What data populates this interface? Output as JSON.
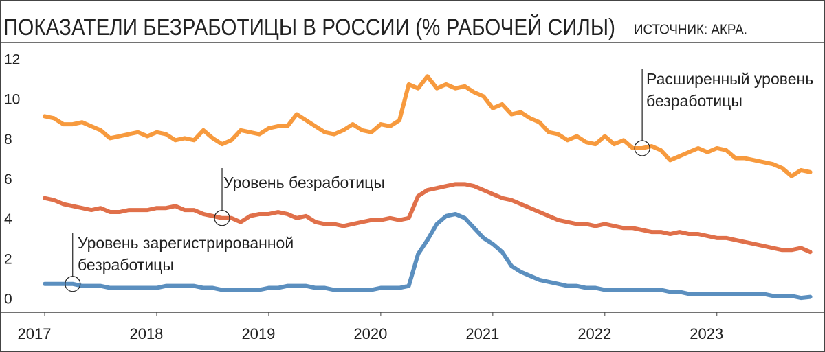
{
  "chart_data": {
    "type": "line",
    "title": "ПОКАЗАТЕЛИ БЕЗРАБОТИЦЫ В РОССИИ (% РАБОЧЕЙ СИЛЫ)",
    "source": "ИСТОЧНИК: АКРА.",
    "categories": [
      "2017",
      null,
      null,
      null,
      null,
      null,
      null,
      null,
      null,
      null,
      null,
      null,
      "2018",
      null,
      null,
      null,
      null,
      null,
      null,
      null,
      null,
      null,
      null,
      null,
      "2019",
      null,
      null,
      null,
      null,
      null,
      null,
      null,
      null,
      null,
      null,
      null,
      "2020",
      null,
      null,
      null,
      null,
      null,
      null,
      null,
      null,
      null,
      null,
      null,
      "2021",
      null,
      null,
      null,
      null,
      null,
      null,
      null,
      null,
      null,
      null,
      null,
      "2022",
      null,
      null,
      null,
      null,
      null,
      null,
      null,
      null,
      null,
      null,
      null,
      "2023",
      null,
      null,
      null,
      null,
      null,
      null,
      null,
      null,
      null,
      null
    ],
    "series": [
      {
        "color": "#f79a3e",
        "values": [
          9.2,
          9.1,
          8.8,
          8.8,
          8.9,
          8.7,
          8.5,
          8.1,
          8.2,
          8.3,
          8.4,
          8.2,
          8.4,
          8.3,
          8.0,
          8.1,
          8.0,
          8.5,
          8.1,
          7.8,
          8.0,
          8.5,
          8.4,
          8.3,
          8.6,
          8.7,
          8.7,
          9.3,
          9.0,
          8.7,
          8.4,
          8.3,
          8.5,
          8.8,
          8.5,
          8.4,
          8.8,
          8.7,
          9.0,
          10.8,
          10.6,
          11.2,
          10.6,
          10.8,
          10.6,
          10.7,
          10.4,
          10.2,
          9.6,
          9.8,
          9.3,
          9.4,
          9.1,
          8.9,
          8.4,
          8.3,
          8.0,
          8.2,
          7.9,
          7.8,
          8.2,
          7.8,
          8.0,
          7.6,
          7.6,
          7.7,
          7.5,
          7.0,
          7.2,
          7.4,
          7.6,
          7.4,
          7.6,
          7.5,
          7.1,
          7.1,
          7.0,
          6.9,
          6.8,
          6.6,
          6.2,
          6.5,
          6.4
        ]
      },
      {
        "color": "#e0704a",
        "values": [
          5.1,
          5.0,
          4.8,
          4.7,
          4.6,
          4.5,
          4.6,
          4.4,
          4.4,
          4.5,
          4.5,
          4.5,
          4.6,
          4.6,
          4.7,
          4.5,
          4.5,
          4.3,
          4.2,
          4.1,
          4.1,
          3.9,
          4.2,
          4.3,
          4.3,
          4.4,
          4.3,
          4.1,
          4.2,
          3.9,
          3.8,
          3.8,
          3.7,
          3.8,
          3.9,
          4.0,
          4.0,
          4.1,
          4.0,
          4.1,
          5.2,
          5.5,
          5.6,
          5.7,
          5.8,
          5.8,
          5.7,
          5.5,
          5.3,
          5.1,
          5.0,
          4.8,
          4.6,
          4.4,
          4.2,
          4.0,
          3.9,
          3.8,
          3.8,
          3.7,
          3.8,
          3.7,
          3.6,
          3.6,
          3.5,
          3.4,
          3.4,
          3.3,
          3.4,
          3.3,
          3.3,
          3.2,
          3.1,
          3.1,
          3.0,
          2.9,
          2.8,
          2.7,
          2.6,
          2.5,
          2.5,
          2.6,
          2.4
        ]
      },
      {
        "color": "#5b8fbf",
        "values": [
          0.8,
          0.8,
          0.8,
          0.8,
          0.7,
          0.7,
          0.7,
          0.6,
          0.6,
          0.6,
          0.6,
          0.6,
          0.6,
          0.7,
          0.7,
          0.7,
          0.7,
          0.6,
          0.6,
          0.5,
          0.5,
          0.5,
          0.5,
          0.5,
          0.6,
          0.6,
          0.7,
          0.7,
          0.7,
          0.6,
          0.6,
          0.5,
          0.5,
          0.5,
          0.5,
          0.5,
          0.6,
          0.6,
          0.6,
          0.7,
          2.3,
          3.0,
          3.8,
          4.2,
          4.3,
          4.1,
          3.6,
          3.1,
          2.8,
          2.4,
          1.7,
          1.4,
          1.2,
          1.0,
          0.9,
          0.8,
          0.7,
          0.7,
          0.6,
          0.6,
          0.5,
          0.5,
          0.5,
          0.5,
          0.5,
          0.5,
          0.5,
          0.4,
          0.4,
          0.3,
          0.3,
          0.3,
          0.3,
          0.3,
          0.3,
          0.3,
          0.3,
          0.3,
          0.2,
          0.2,
          0.2,
          0.1,
          0.15
        ]
      }
    ],
    "annotations": [
      [
        "Расширенный уровень",
        "безработицы"
      ],
      [
        "Уровень безработицы"
      ],
      [
        "Уровень зарегистрированной",
        "безработицы"
      ]
    ],
    "ylim": [
      0,
      12
    ],
    "yticks": [
      0,
      2,
      4,
      6,
      8,
      10,
      12
    ],
    "grid": false
  }
}
